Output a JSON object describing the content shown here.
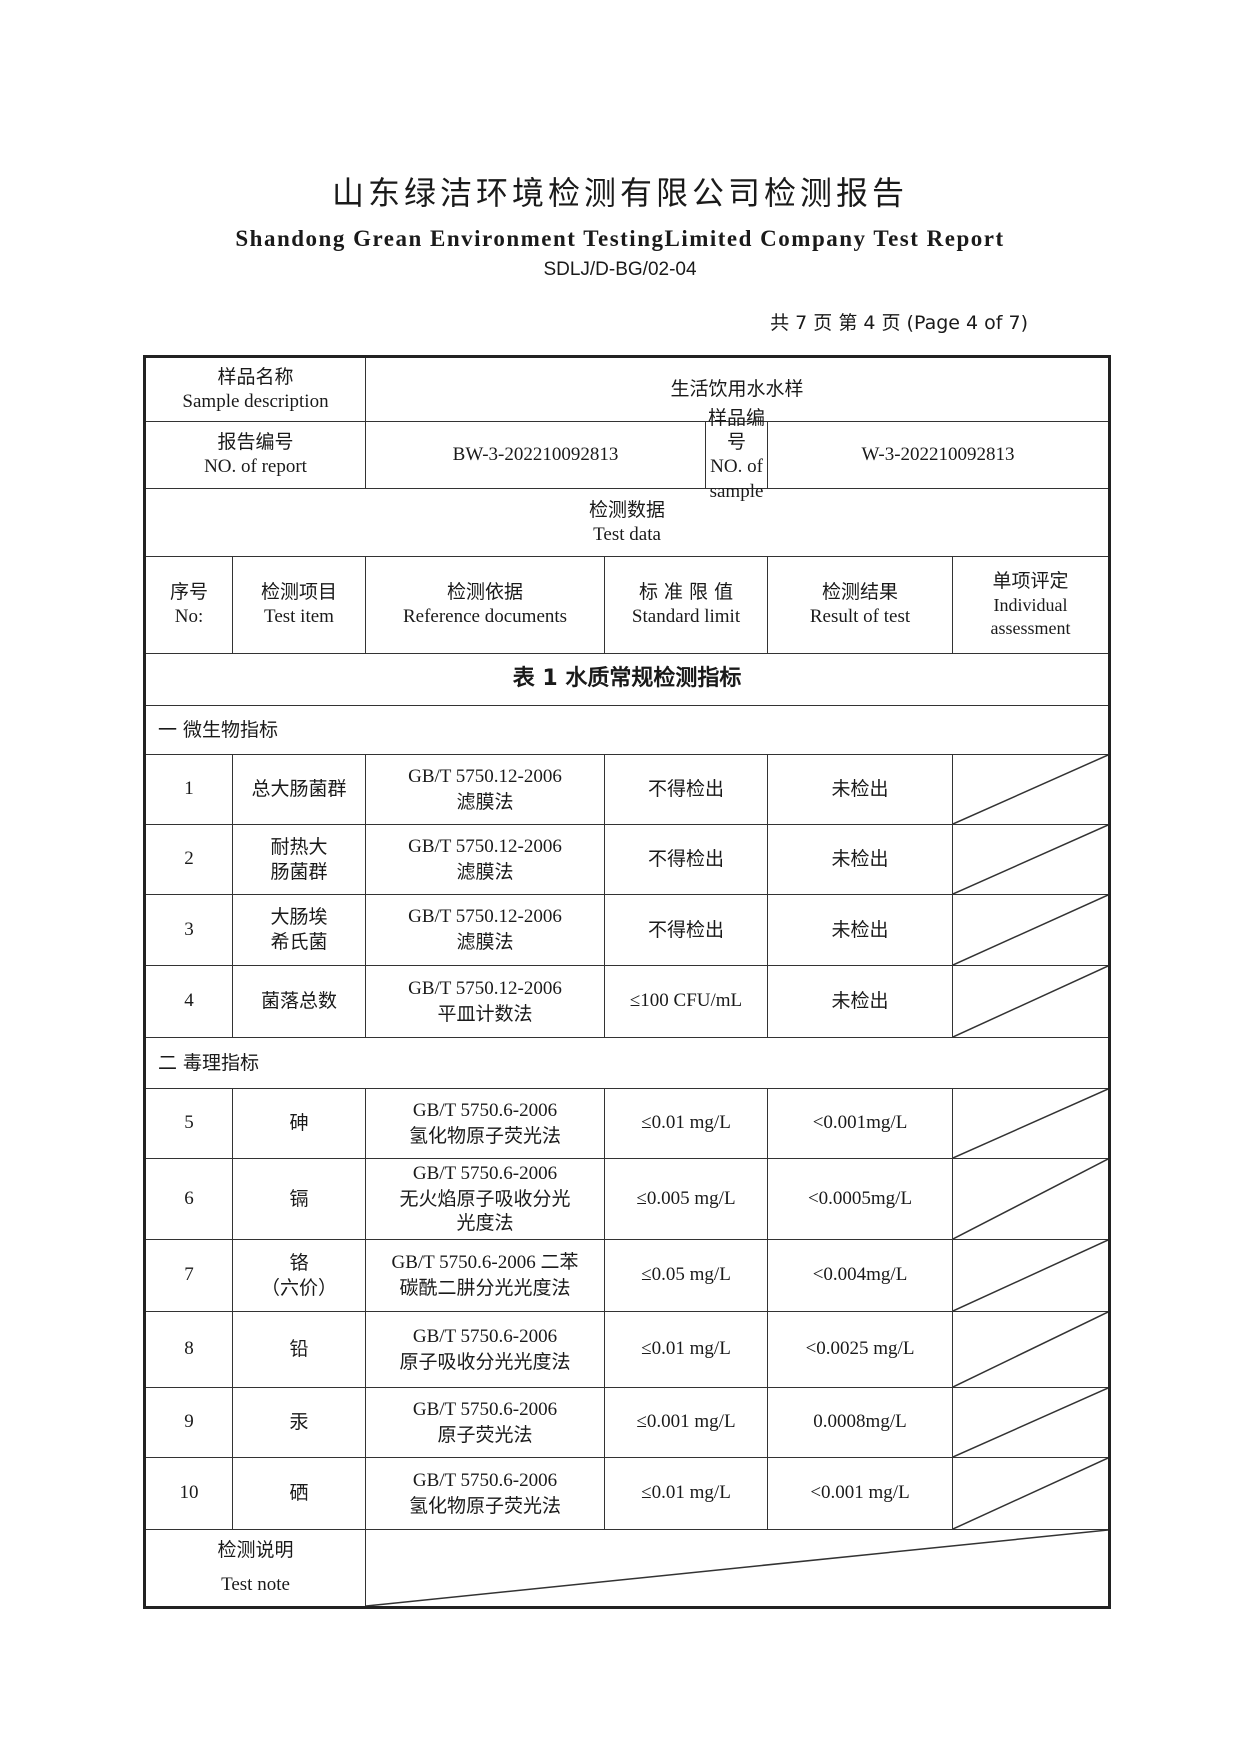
{
  "header": {
    "title_zh": "山东绿洁环境检测有限公司检测报告",
    "title_en": "Shandong Grean Environment TestingLimited Company Test Report",
    "form_code": "SDLJ/D-BG/02-04",
    "page_info": "共 7 页  第 4 页  (Page 4 of 7)"
  },
  "info": {
    "sample_desc_zh": "样品名称",
    "sample_desc_en": "Sample description",
    "sample_desc_value": "生活饮用水水样",
    "report_no_zh": "报告编号",
    "report_no_en": "NO. of report",
    "report_no_value": "BW-3-202210092813",
    "sample_no_zh": "样品编号",
    "sample_no_en": "NO. of sample",
    "sample_no_value": "W-3-202210092813",
    "test_data_zh": "检测数据",
    "test_data_en": "Test data"
  },
  "columns": [
    {
      "zh": "序号",
      "en": "No:"
    },
    {
      "zh": "检测项目",
      "en": "Test item"
    },
    {
      "zh": "检测依据",
      "en": "Reference documents"
    },
    {
      "zh": "标 准 限 值",
      "en": "Standard limit"
    },
    {
      "zh": "检测结果",
      "en": "Result of test"
    },
    {
      "zh": "单项评定",
      "en": "Individual assessment"
    }
  ],
  "table_title": "表 1 水质常规检测指标",
  "sections": [
    {
      "label": "一  微生物指标",
      "rows": [
        {
          "no": "1",
          "item": [
            "总大肠菌群"
          ],
          "ref": [
            "GB/T 5750.12-2006",
            "滤膜法"
          ],
          "limit": "不得检出",
          "result": "未检出"
        },
        {
          "no": "2",
          "item": [
            "耐热大",
            "肠菌群"
          ],
          "ref": [
            "GB/T 5750.12-2006",
            "滤膜法"
          ],
          "limit": "不得检出",
          "result": "未检出"
        },
        {
          "no": "3",
          "item": [
            "大肠埃",
            "希氏菌"
          ],
          "ref": [
            "GB/T 5750.12-2006",
            "滤膜法"
          ],
          "limit": "不得检出",
          "result": "未检出"
        },
        {
          "no": "4",
          "item": [
            "菌落总数"
          ],
          "ref": [
            "GB/T 5750.12-2006",
            "平皿计数法"
          ],
          "limit": "≤100 CFU/mL",
          "result": "未检出"
        }
      ]
    },
    {
      "label": "二  毒理指标",
      "rows": [
        {
          "no": "5",
          "item": [
            "砷"
          ],
          "ref": [
            "GB/T 5750.6-2006",
            "氢化物原子荧光法"
          ],
          "limit": "≤0.01 mg/L",
          "result": "<0.001mg/L"
        },
        {
          "no": "6",
          "item": [
            "镉"
          ],
          "ref": [
            "GB/T 5750.6-2006",
            "无火焰原子吸收分光",
            "光度法"
          ],
          "limit": "≤0.005 mg/L",
          "result": "<0.0005mg/L"
        },
        {
          "no": "7",
          "item": [
            "铬",
            "（六价）"
          ],
          "ref": [
            "GB/T 5750.6-2006 二苯",
            "碳酰二肼分光光度法"
          ],
          "limit": "≤0.05 mg/L",
          "result": "<0.004mg/L"
        },
        {
          "no": "8",
          "item": [
            "铅"
          ],
          "ref": [
            "GB/T 5750.6-2006",
            "原子吸收分光光度法"
          ],
          "limit": "≤0.01 mg/L",
          "result": "<0.0025 mg/L"
        },
        {
          "no": "9",
          "item": [
            "汞"
          ],
          "ref": [
            "GB/T 5750.6-2006",
            "原子荧光法"
          ],
          "limit": "≤0.001 mg/L",
          "result": "0.0008mg/L"
        },
        {
          "no": "10",
          "item": [
            "硒"
          ],
          "ref": [
            "GB/T 5750.6-2006",
            "氢化物原子荧光法"
          ],
          "limit": "≤0.01 mg/L",
          "result": "<0.001 mg/L"
        }
      ]
    }
  ],
  "note": {
    "zh": "检测说明",
    "en": "Test note"
  }
}
